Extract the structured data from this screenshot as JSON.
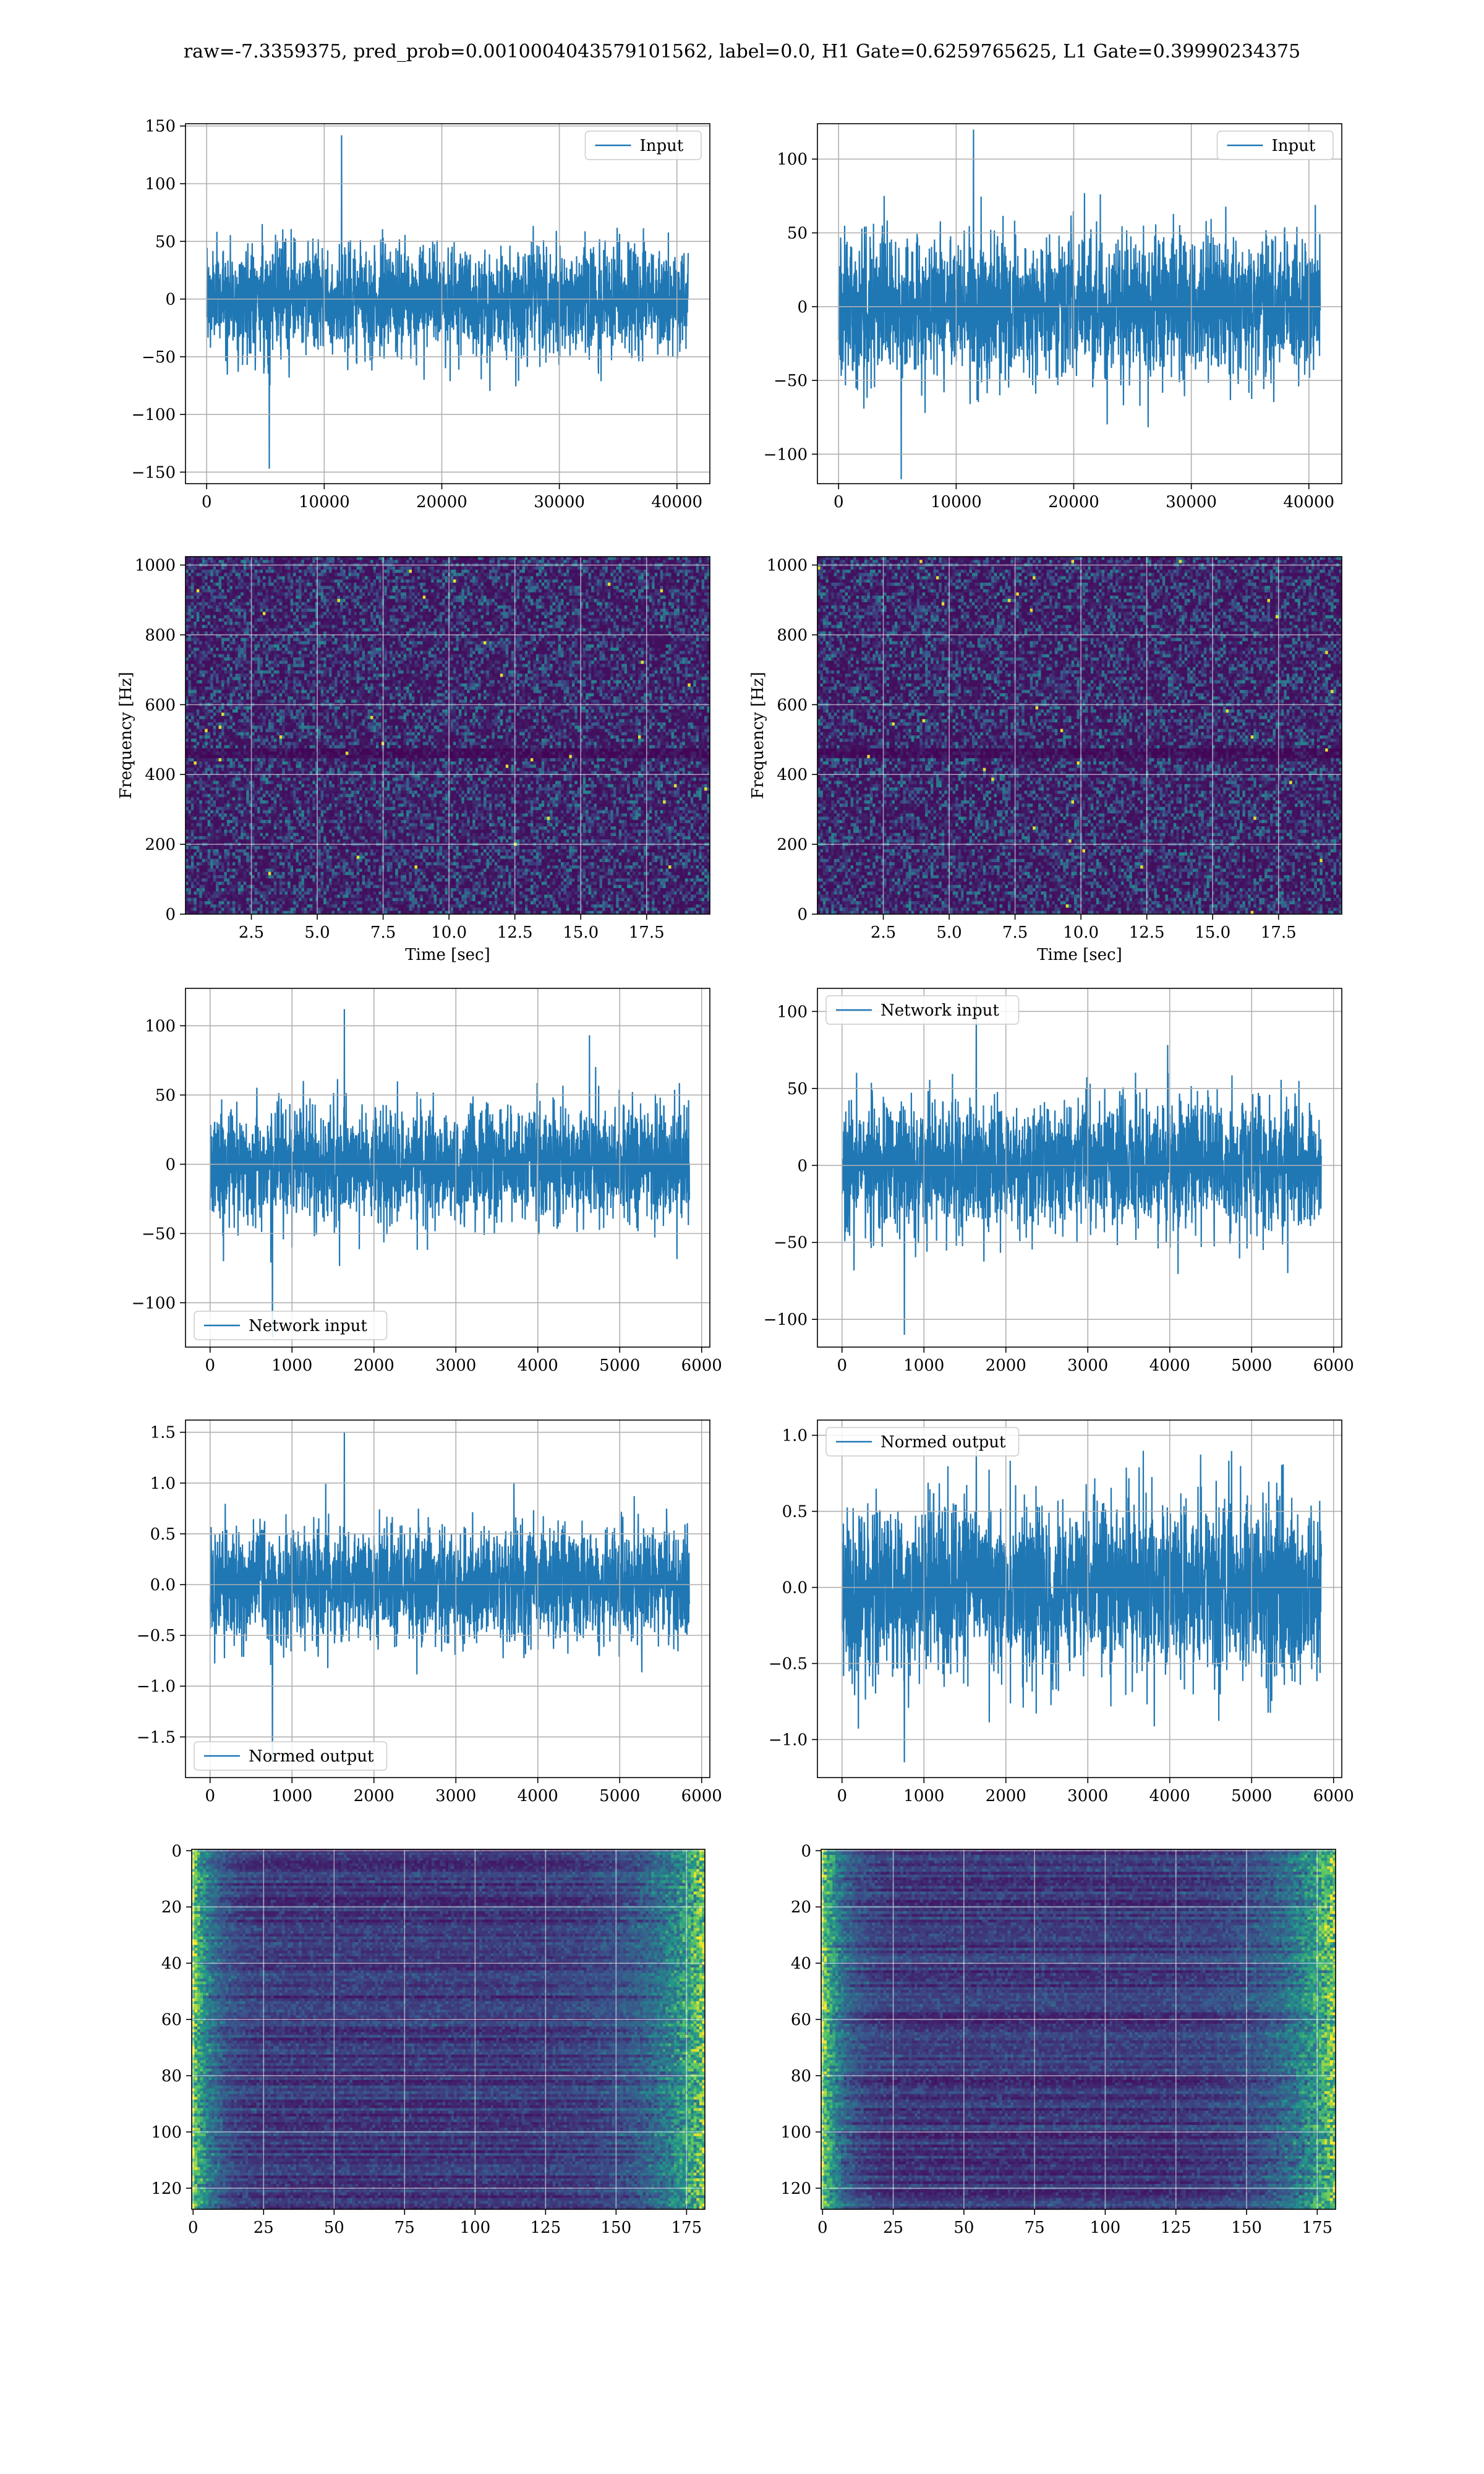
{
  "suptitle": "raw=-7.3359375, pred_prob=0.0010004043579101562, label=0.0, H1 Gate=0.6259765625, L1 Gate=0.39990234375",
  "colors": {
    "line": "#1f77b4",
    "grid": "#b0b0b0",
    "viridis_low": "#440154",
    "viridis_mid": "#21918c",
    "viridis_high": "#fde725"
  },
  "chart_data": [
    {
      "id": "r1c1",
      "type": "line",
      "xlim": [
        -1800,
        42800
      ],
      "ylim": [
        -160,
        152
      ],
      "xticks": [
        0,
        10000,
        20000,
        30000,
        40000
      ],
      "yticks": [
        -150,
        -100,
        -50,
        0,
        50,
        100,
        150
      ],
      "xticklabels": [
        "0",
        "10000",
        "20000",
        "30000",
        "40000"
      ],
      "yticklabels": [
        "−150",
        "−100",
        "−50",
        "0",
        "50",
        "100",
        "150"
      ],
      "legend": "Input",
      "legend_loc": "upper right",
      "series": [
        {
          "name": "Input",
          "x_range": [
            0,
            40960
          ],
          "sigma": 25,
          "min": -147,
          "max": 142
        }
      ]
    },
    {
      "id": "r1c2",
      "type": "line",
      "xlim": [
        -1800,
        42800
      ],
      "ylim": [
        -120,
        124
      ],
      "xticks": [
        0,
        10000,
        20000,
        30000,
        40000
      ],
      "yticks": [
        -100,
        -50,
        0,
        50,
        100
      ],
      "xticklabels": [
        "0",
        "10000",
        "20000",
        "30000",
        "40000"
      ],
      "yticklabels": [
        "−100",
        "−50",
        "0",
        "50",
        "100"
      ],
      "legend": "Input",
      "legend_loc": "upper right",
      "series": [
        {
          "name": "Input",
          "x_range": [
            0,
            40960
          ],
          "sigma": 25,
          "min": -117,
          "max": 120
        }
      ]
    },
    {
      "id": "r2c1",
      "type": "heatmap",
      "xlim": [
        0,
        19.9
      ],
      "ylim": [
        0,
        1024
      ],
      "xticks": [
        2.5,
        5.0,
        7.5,
        10.0,
        12.5,
        15.0,
        17.5
      ],
      "yticks": [
        0,
        200,
        400,
        600,
        800,
        1000
      ],
      "xticklabels": [
        "2.5",
        "5.0",
        "7.5",
        "10.0",
        "12.5",
        "15.0",
        "17.5"
      ],
      "yticklabels": [
        "0",
        "200",
        "400",
        "600",
        "800",
        "1000"
      ],
      "xlabel": "Time [sec]",
      "ylabel": "Frequency [Hz]",
      "colormap": "viridis"
    },
    {
      "id": "r2c2",
      "type": "heatmap",
      "xlim": [
        0,
        19.9
      ],
      "ylim": [
        0,
        1024
      ],
      "xticks": [
        2.5,
        5.0,
        7.5,
        10.0,
        12.5,
        15.0,
        17.5
      ],
      "yticks": [
        0,
        200,
        400,
        600,
        800,
        1000
      ],
      "xticklabels": [
        "2.5",
        "5.0",
        "7.5",
        "10.0",
        "12.5",
        "15.0",
        "17.5"
      ],
      "yticklabels": [
        "0",
        "200",
        "400",
        "600",
        "800",
        "1000"
      ],
      "xlabel": "Time [sec]",
      "ylabel": "Frequency [Hz]",
      "colormap": "viridis"
    },
    {
      "id": "r3c1",
      "type": "line",
      "xlim": [
        -300,
        6100
      ],
      "ylim": [
        -132,
        127
      ],
      "xticks": [
        0,
        1000,
        2000,
        3000,
        4000,
        5000,
        6000
      ],
      "yticks": [
        -100,
        -50,
        0,
        50,
        100
      ],
      "xticklabels": [
        "0",
        "1000",
        "2000",
        "3000",
        "4000",
        "5000",
        "6000"
      ],
      "yticklabels": [
        "−100",
        "−50",
        "0",
        "50",
        "100"
      ],
      "legend": "Network input",
      "legend_loc": "lower left",
      "series": [
        {
          "name": "Network input",
          "x_range": [
            0,
            5850
          ],
          "sigma": 22,
          "min": -125,
          "max": 112
        }
      ]
    },
    {
      "id": "r3c2",
      "type": "line",
      "xlim": [
        -300,
        6100
      ],
      "ylim": [
        -118,
        115
      ],
      "xticks": [
        0,
        1000,
        2000,
        3000,
        4000,
        5000,
        6000
      ],
      "yticks": [
        -100,
        -50,
        0,
        50,
        100
      ],
      "xticklabels": [
        "0",
        "1000",
        "2000",
        "3000",
        "4000",
        "5000",
        "6000"
      ],
      "yticklabels": [
        "−100",
        "−50",
        "0",
        "50",
        "100"
      ],
      "legend": "Network input",
      "legend_loc": "upper left",
      "series": [
        {
          "name": "Network input",
          "x_range": [
            0,
            5850
          ],
          "sigma": 22,
          "min": -110,
          "max": 110
        }
      ]
    },
    {
      "id": "r4c1",
      "type": "line",
      "xlim": [
        -300,
        6100
      ],
      "ylim": [
        -1.9,
        1.62
      ],
      "xticks": [
        0,
        1000,
        2000,
        3000,
        4000,
        5000,
        6000
      ],
      "yticks": [
        -1.5,
        -1.0,
        -0.5,
        0.0,
        0.5,
        1.0,
        1.5
      ],
      "xticklabels": [
        "0",
        "1000",
        "2000",
        "3000",
        "4000",
        "5000",
        "6000"
      ],
      "yticklabels": [
        "−1.5",
        "−1.0",
        "−0.5",
        "0.0",
        "0.5",
        "1.0",
        "1.5"
      ],
      "legend": "Normed output",
      "legend_loc": "lower left",
      "series": [
        {
          "name": "Normed output",
          "x_range": [
            0,
            5850
          ],
          "sigma": 0.3,
          "min": -1.75,
          "max": 1.5
        }
      ]
    },
    {
      "id": "r4c2",
      "type": "line",
      "xlim": [
        -300,
        6100
      ],
      "ylim": [
        -1.25,
        1.1
      ],
      "xticks": [
        0,
        1000,
        2000,
        3000,
        4000,
        5000,
        6000
      ],
      "yticks": [
        -1.0,
        -0.5,
        0.0,
        0.5,
        1.0
      ],
      "xticklabels": [
        "0",
        "1000",
        "2000",
        "3000",
        "4000",
        "5000",
        "6000"
      ],
      "yticklabels": [
        "−1.0",
        "−0.5",
        "0.0",
        "0.5",
        "1.0"
      ],
      "legend": "Normed output",
      "legend_loc": "upper left",
      "series": [
        {
          "name": "Normed output",
          "x_range": [
            0,
            5850
          ],
          "sigma": 0.3,
          "min": -1.15,
          "max": 1.0
        }
      ]
    },
    {
      "id": "r5c1",
      "type": "heatmap",
      "xlim": [
        -0.5,
        181.5
      ],
      "ylim": [
        127.5,
        -0.5
      ],
      "y_inverted": true,
      "xticks": [
        0,
        25,
        50,
        75,
        100,
        125,
        150,
        175
      ],
      "yticks": [
        0,
        20,
        40,
        60,
        80,
        100,
        120
      ],
      "xticklabels": [
        "0",
        "25",
        "50",
        "75",
        "100",
        "125",
        "150",
        "175"
      ],
      "yticklabels": [
        "0",
        "20",
        "40",
        "60",
        "80",
        "100",
        "120"
      ],
      "colormap": "viridis",
      "bright_edges": "left and right"
    },
    {
      "id": "r5c2",
      "type": "heatmap",
      "xlim": [
        -0.5,
        181.5
      ],
      "ylim": [
        127.5,
        -0.5
      ],
      "y_inverted": true,
      "xticks": [
        0,
        25,
        50,
        75,
        100,
        125,
        150,
        175
      ],
      "yticks": [
        0,
        20,
        40,
        60,
        80,
        100,
        120
      ],
      "xticklabels": [
        "0",
        "25",
        "50",
        "75",
        "100",
        "125",
        "150",
        "175"
      ],
      "yticklabels": [
        "0",
        "20",
        "40",
        "60",
        "80",
        "100",
        "120"
      ],
      "colormap": "viridis",
      "bright_edges": "left and right"
    }
  ]
}
